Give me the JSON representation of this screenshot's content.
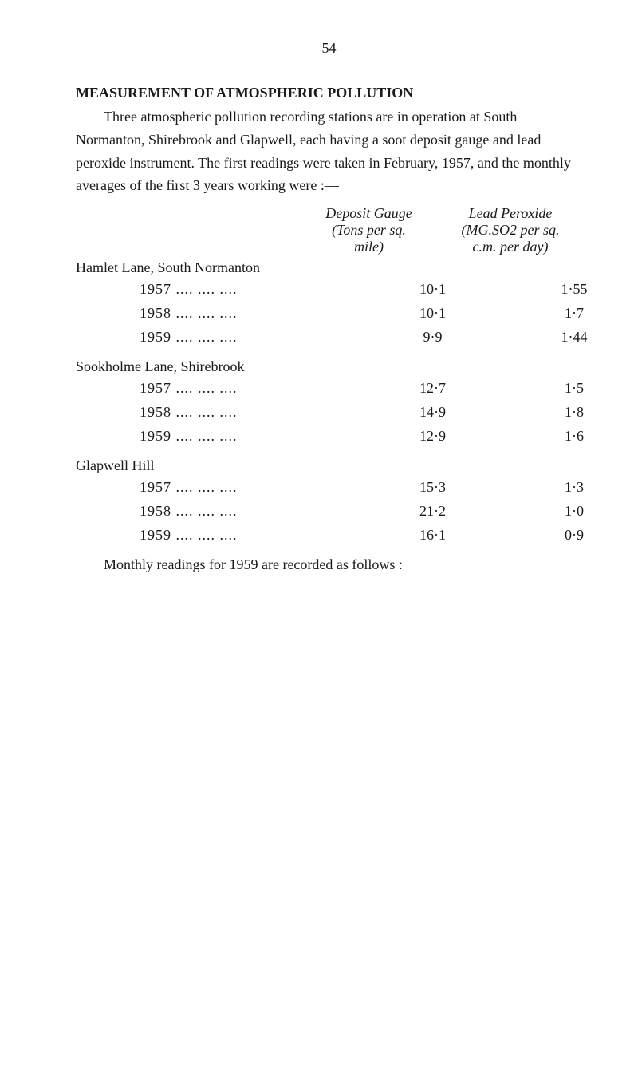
{
  "page_number": "54",
  "title": "MEASUREMENT OF ATMOSPHERIC POLLUTION",
  "intro_text": "Three atmospheric pollution recording stations are in operation at South Normanton, Shirebrook and Glapwell, each having a soot deposit gauge and lead peroxide instrument.  The first readings were taken in February, 1957, and the monthly averages of the first 3 years working were :—",
  "headers": {
    "deposit_line1": "Deposit Gauge",
    "deposit_line2": "(Tons per sq.",
    "deposit_line3": "mile)",
    "lead_line1": "Lead Peroxide",
    "lead_line2": "(MG.SO2 per sq.",
    "lead_line3": "c.m. per day)"
  },
  "sections": [
    {
      "label": "Hamlet Lane, South Normanton",
      "rows": [
        {
          "year": "1957 ....      ....      ....",
          "deposit": "10·1",
          "lead": "1·55"
        },
        {
          "year": "1958 ....      ....      ....",
          "deposit": "10·1",
          "lead": "1·7"
        },
        {
          "year": "1959 ....      ....      ....",
          "deposit": "9·9",
          "lead": "1·44"
        }
      ]
    },
    {
      "label": "Sookholme Lane, Shirebrook",
      "rows": [
        {
          "year": "1957 ....      ....      ....",
          "deposit": "12·7",
          "lead": "1·5"
        },
        {
          "year": "1958 ....      ....      ....",
          "deposit": "14·9",
          "lead": "1·8"
        },
        {
          "year": "1959 ....      ....      ....",
          "deposit": "12·9",
          "lead": "1·6"
        }
      ]
    },
    {
      "label": "Glapwell Hill",
      "rows": [
        {
          "year": "1957 ....      ....      ....",
          "deposit": "15·3",
          "lead": "1·3"
        },
        {
          "year": "1958 ....      ....      ....",
          "deposit": "21·2",
          "lead": "1·0"
        },
        {
          "year": "1959 ....      ....      ....",
          "deposit": "16·1",
          "lead": "0·9"
        }
      ]
    }
  ],
  "footer_text": "Monthly readings for 1959 are recorded as follows :"
}
